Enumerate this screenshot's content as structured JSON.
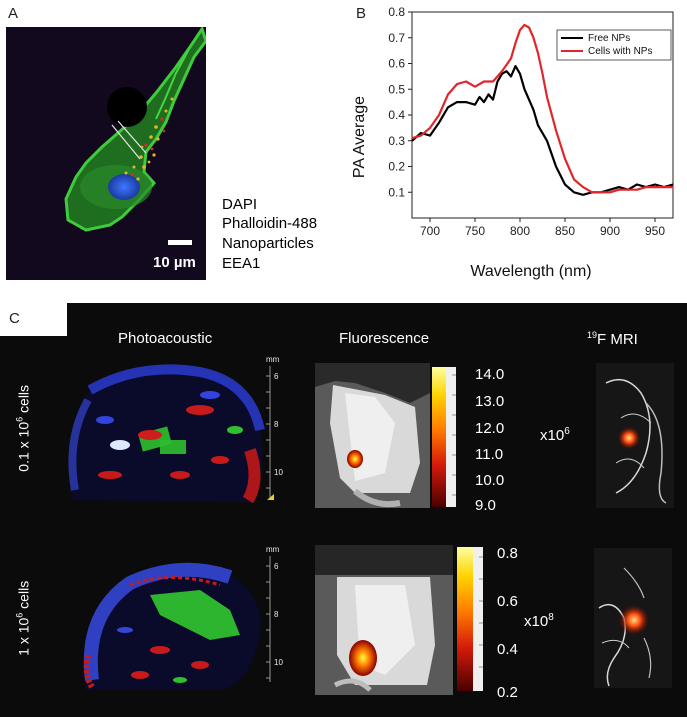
{
  "panels": {
    "a_letter": "A",
    "b_letter": "B",
    "c_letter": "C"
  },
  "panel_a": {
    "scalebar_label": "10 µm",
    "legend": [
      {
        "label": "DAPI",
        "color": "#2a6fd6"
      },
      {
        "label": "Phalloidin-488",
        "color": "#27a83a"
      },
      {
        "label": "Nanoparticles",
        "color": "#e0262a"
      },
      {
        "label": "EEA1",
        "color": "#e8b428"
      }
    ]
  },
  "chart_data": {
    "type": "line",
    "title": "",
    "xlabel": "Wavelength (nm)",
    "ylabel": "PA Average",
    "xlim": [
      680,
      970
    ],
    "ylim": [
      0.0,
      0.8
    ],
    "xticks": [
      700,
      750,
      800,
      850,
      900,
      950
    ],
    "yticks": [
      0.1,
      0.2,
      0.3,
      0.4,
      0.5,
      0.6,
      0.7,
      0.8
    ],
    "legend_position": "top-right",
    "series": [
      {
        "name": "Free NPs",
        "color": "#000000",
        "x": [
          680,
          690,
          700,
          710,
          720,
          730,
          740,
          750,
          755,
          760,
          765,
          770,
          775,
          780,
          785,
          790,
          795,
          800,
          805,
          810,
          815,
          820,
          830,
          840,
          850,
          860,
          870,
          880,
          890,
          900,
          910,
          920,
          930,
          940,
          950,
          960,
          970
        ],
        "y": [
          0.3,
          0.33,
          0.32,
          0.37,
          0.43,
          0.45,
          0.45,
          0.44,
          0.47,
          0.45,
          0.48,
          0.46,
          0.53,
          0.56,
          0.57,
          0.55,
          0.59,
          0.56,
          0.5,
          0.46,
          0.42,
          0.36,
          0.3,
          0.2,
          0.13,
          0.1,
          0.09,
          0.1,
          0.1,
          0.11,
          0.12,
          0.11,
          0.13,
          0.12,
          0.13,
          0.12,
          0.13
        ]
      },
      {
        "name": "Cells with NPs",
        "color": "#e0262a",
        "x": [
          680,
          690,
          700,
          710,
          720,
          730,
          740,
          750,
          760,
          770,
          780,
          790,
          795,
          800,
          805,
          810,
          815,
          820,
          825,
          830,
          840,
          850,
          860,
          870,
          880,
          890,
          900,
          910,
          920,
          930,
          940,
          950,
          960,
          970
        ],
        "y": [
          0.31,
          0.32,
          0.35,
          0.4,
          0.48,
          0.52,
          0.53,
          0.51,
          0.53,
          0.53,
          0.57,
          0.62,
          0.68,
          0.73,
          0.75,
          0.74,
          0.7,
          0.64,
          0.56,
          0.47,
          0.34,
          0.23,
          0.15,
          0.12,
          0.1,
          0.1,
          0.1,
          0.11,
          0.11,
          0.11,
          0.12,
          0.12,
          0.12,
          0.12
        ]
      }
    ]
  },
  "panel_c": {
    "col_titles": {
      "photoacoustic": "Photoacoustic",
      "fluorescence": "Fluorescence",
      "mri_sup": "19",
      "mri": "F MRI"
    },
    "rows": [
      {
        "label_main": "0.1 x 10",
        "label_sup": "6",
        "label_tail": " cells"
      },
      {
        "label_main": "1 x 10",
        "label_sup": "6",
        "label_tail": " cells"
      }
    ],
    "depth_unit": "mm",
    "depth_ticks": [
      "6",
      "8",
      "10"
    ],
    "colorbar_top": {
      "labels": [
        "14.0",
        "13.0",
        "12.0",
        "11.0",
        "10.0",
        "9.0"
      ],
      "exponent_base": "x10",
      "exponent_sup": "6"
    },
    "colorbar_bottom": {
      "labels": [
        "0.8",
        "0.6",
        "0.4",
        "0.2"
      ],
      "exponent_base": "x10",
      "exponent_sup": "8"
    }
  }
}
